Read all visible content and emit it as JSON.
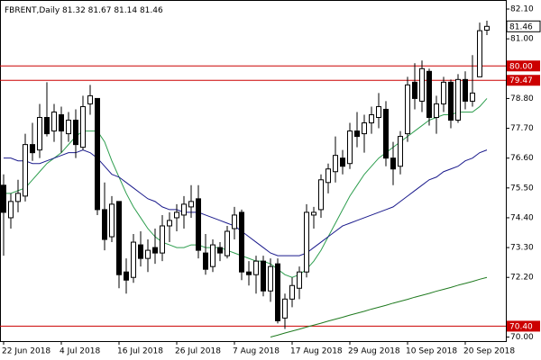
{
  "chart_data": {
    "type": "candlestick",
    "symbol": "FBRENT,Daily",
    "categories": [
      "22 Jun 2018",
      null,
      null,
      null,
      null,
      null,
      null,
      null,
      "4 Jul 2018",
      null,
      null,
      null,
      null,
      null,
      null,
      null,
      "16 Jul 2018",
      null,
      null,
      null,
      null,
      null,
      null,
      null,
      "26 Jul 2018",
      null,
      null,
      null,
      null,
      null,
      null,
      null,
      "7 Aug 2018",
      null,
      null,
      null,
      null,
      null,
      null,
      null,
      "17 Aug 2018",
      null,
      null,
      null,
      null,
      null,
      null,
      null,
      "29 Aug 2018",
      null,
      null,
      null,
      null,
      null,
      null,
      null,
      "10 Sep 2018",
      null,
      null,
      null,
      null,
      null,
      null,
      null,
      "20 Sep 2018",
      null,
      null,
      null
    ],
    "open": [
      75.6,
      74.4,
      75.0,
      75.2,
      77.1,
      76.9,
      78.1,
      77.6,
      78.2,
      77.5,
      78.0,
      77.0,
      78.6,
      78.8,
      74.7,
      73.7,
      75.0,
      72.4,
      72.2,
      73.4,
      72.9,
      73.3,
      73.1,
      74.1,
      74.4,
      74.5,
      74.8,
      75.1,
      73.1,
      72.6,
      73.3,
      73.0,
      74.0,
      74.6,
      72.4,
      72.3,
      72.8,
      71.7,
      72.7,
      70.7,
      71.4,
      71.8,
      72.4,
      74.5,
      74.7,
      75.7,
      76.1,
      76.6,
      76.4,
      77.6,
      77.5,
      77.9,
      78.1,
      78.4,
      76.6,
      76.3,
      77.5,
      79.4,
      78.7,
      79.8,
      78.1,
      78.6,
      79.4,
      78.0,
      79.5,
      78.7,
      79.6,
      81.32
    ],
    "high": [
      76.0,
      75.3,
      75.8,
      77.5,
      77.9,
      78.6,
      79.4,
      78.6,
      78.5,
      78.3,
      78.4,
      78.9,
      79.3,
      78.8,
      75.7,
      75.2,
      75.0,
      72.9,
      73.8,
      73.9,
      73.6,
      74.0,
      74.5,
      74.6,
      74.9,
      75.2,
      75.6,
      75.6,
      73.8,
      73.6,
      73.5,
      74.1,
      74.8,
      74.7,
      72.8,
      73.0,
      73.0,
      72.9,
      72.9,
      71.6,
      72.2,
      72.6,
      74.9,
      74.8,
      76.0,
      76.4,
      77.4,
      76.9,
      77.9,
      78.3,
      78.2,
      78.5,
      79.0,
      78.7,
      77.2,
      77.6,
      79.6,
      80.1,
      80.2,
      79.9,
      78.9,
      79.6,
      79.5,
      79.7,
      79.8,
      80.4,
      81.6,
      81.67
    ],
    "low": [
      73.0,
      74.0,
      74.6,
      75.0,
      76.5,
      76.6,
      77.4,
      77.2,
      76.8,
      77.2,
      76.6,
      76.9,
      78.2,
      74.5,
      73.2,
      73.5,
      71.8,
      71.6,
      72.0,
      72.6,
      72.4,
      72.7,
      72.8,
      73.5,
      73.9,
      74.0,
      74.4,
      72.9,
      72.3,
      72.4,
      72.8,
      72.9,
      73.6,
      72.1,
      71.9,
      71.6,
      71.5,
      71.3,
      70.5,
      70.3,
      71.1,
      71.4,
      72.2,
      74.0,
      74.4,
      75.3,
      75.7,
      76.0,
      76.2,
      77.0,
      76.8,
      77.5,
      77.7,
      76.3,
      75.6,
      76.0,
      77.2,
      78.4,
      78.3,
      77.8,
      77.5,
      78.3,
      77.7,
      77.9,
      78.4,
      78.5,
      79.6,
      81.14
    ],
    "close": [
      74.6,
      75.0,
      75.3,
      77.1,
      76.8,
      78.1,
      77.5,
      78.3,
      77.6,
      78.0,
      77.1,
      78.5,
      78.9,
      74.7,
      73.6,
      74.9,
      72.3,
      72.1,
      73.5,
      72.9,
      73.2,
      73.1,
      74.1,
      74.3,
      74.6,
      74.9,
      75.0,
      73.2,
      72.5,
      73.4,
      73.1,
      73.9,
      74.5,
      72.4,
      72.3,
      72.8,
      71.7,
      72.6,
      70.6,
      71.4,
      71.9,
      72.4,
      74.6,
      74.6,
      75.8,
      76.2,
      76.7,
      76.3,
      77.6,
      77.4,
      77.9,
      78.2,
      78.5,
      76.6,
      76.2,
      77.4,
      79.3,
      78.8,
      79.9,
      78.1,
      78.6,
      79.4,
      78.0,
      79.5,
      78.7,
      79.0,
      81.3,
      81.46
    ],
    "series": [
      {
        "color": "#2e9e4f",
        "values": [
          75.3,
          75.3,
          75.4,
          75.5,
          75.8,
          76.1,
          76.4,
          76.6,
          76.8,
          77.1,
          77.4,
          77.6,
          77.6,
          77.6,
          77.2,
          76.5,
          75.9,
          75.3,
          74.8,
          74.4,
          74.0,
          73.7,
          73.5,
          73.4,
          73.3,
          73.3,
          73.4,
          73.4,
          73.3,
          73.3,
          73.3,
          73.2,
          73.1,
          73.0,
          72.9,
          72.8,
          72.8,
          72.7,
          72.5,
          72.3,
          72.2,
          72.3,
          72.5,
          72.8,
          73.2,
          73.7,
          74.2,
          74.7,
          75.2,
          75.6,
          76.0,
          76.3,
          76.6,
          76.8,
          77.0,
          77.2,
          77.4,
          77.6,
          77.8,
          78.0,
          78.1,
          78.2,
          78.2,
          78.3,
          78.3,
          78.3,
          78.5,
          78.8
        ]
      },
      {
        "color": "#1a1a8c",
        "values": [
          76.6,
          76.6,
          76.5,
          76.5,
          76.4,
          76.4,
          76.5,
          76.6,
          76.7,
          76.8,
          76.8,
          76.9,
          76.8,
          76.6,
          76.3,
          76.0,
          75.9,
          75.7,
          75.5,
          75.3,
          75.1,
          75.0,
          74.8,
          74.7,
          74.7,
          74.6,
          74.6,
          74.6,
          74.5,
          74.4,
          74.3,
          74.2,
          74.1,
          73.9,
          73.7,
          73.5,
          73.3,
          73.1,
          73.0,
          73.0,
          73.0,
          73.0,
          73.1,
          73.3,
          73.5,
          73.7,
          73.9,
          74.1,
          74.2,
          74.3,
          74.4,
          74.5,
          74.6,
          74.7,
          74.8,
          75.0,
          75.2,
          75.4,
          75.6,
          75.8,
          75.9,
          76.1,
          76.2,
          76.3,
          76.5,
          76.6,
          76.8,
          76.9
        ]
      },
      {
        "color": "#1f7a1f",
        "values": [
          null,
          null,
          null,
          null,
          null,
          null,
          null,
          null,
          null,
          null,
          null,
          null,
          null,
          null,
          null,
          null,
          null,
          null,
          null,
          null,
          null,
          null,
          null,
          null,
          null,
          null,
          null,
          null,
          null,
          null,
          null,
          null,
          null,
          null,
          null,
          null,
          null,
          70.0,
          70.07,
          70.15,
          70.22,
          70.29,
          70.37,
          70.44,
          70.51,
          70.59,
          70.66,
          70.73,
          70.81,
          70.88,
          70.95,
          71.03,
          71.1,
          71.17,
          71.25,
          71.32,
          71.39,
          71.47,
          71.54,
          71.61,
          71.69,
          71.76,
          71.83,
          71.91,
          71.98,
          72.05,
          72.13,
          72.2
        ]
      }
    ],
    "hlines": [
      {
        "value": 80,
        "label": "80.00"
      },
      {
        "value": 79.47,
        "label": "79.47"
      },
      {
        "value": 70.4,
        "label": "70.40"
      }
    ],
    "hline_color": "#cc0000",
    "ylim": [
      69.85,
      82.3
    ],
    "yticks": [
      {
        "value": 82.1,
        "label": "82.10"
      },
      {
        "value": 81,
        "label": "81.00"
      },
      {
        "value": 78.8,
        "label": "78.80"
      },
      {
        "value": 77.7,
        "label": "77.70"
      },
      {
        "value": 76.6,
        "label": "76.60"
      },
      {
        "value": 75.5,
        "label": "75.50"
      },
      {
        "value": 74.4,
        "label": "74.40"
      },
      {
        "value": 73.3,
        "label": "73.30"
      },
      {
        "value": 72.2,
        "label": "72.20"
      },
      {
        "value": 70,
        "label": "70.00"
      }
    ],
    "grid": false
  }
}
